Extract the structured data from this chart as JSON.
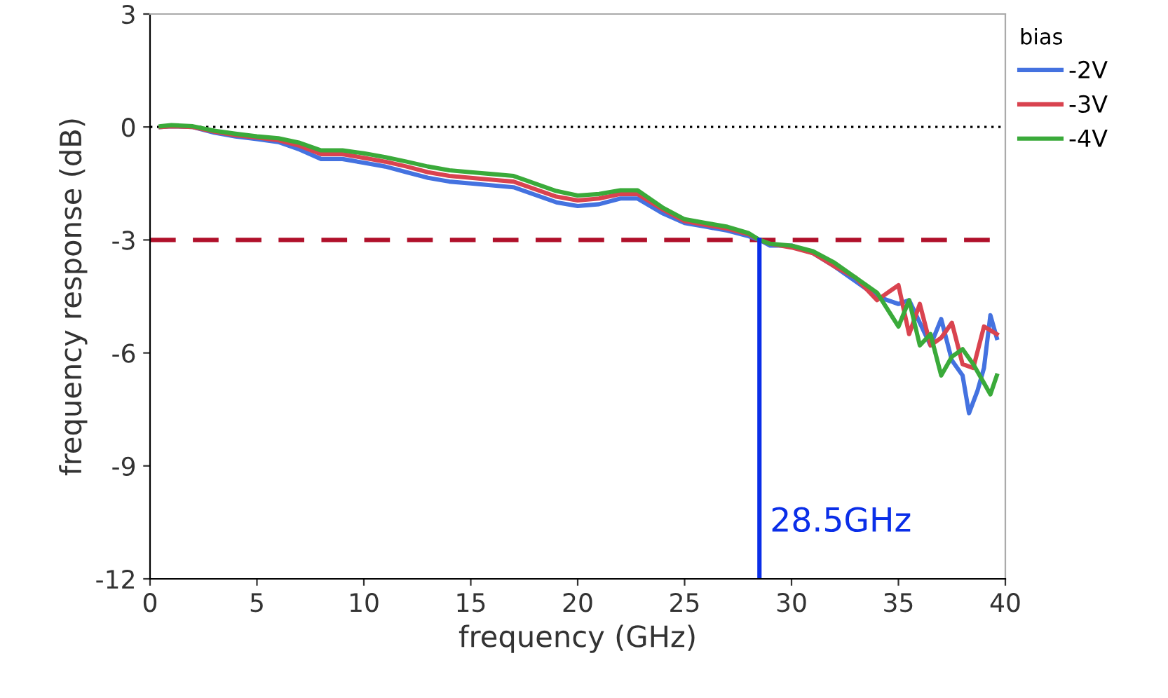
{
  "chart_data": {
    "type": "line",
    "xlabel": "frequency (GHz)",
    "ylabel": "frequency response (dB)",
    "legend_title": "bias",
    "legend": "top right",
    "grid": false,
    "xlim": [
      0,
      40
    ],
    "ylim": [
      -12,
      3
    ],
    "xticks": [
      0,
      5,
      10,
      15,
      20,
      25,
      30,
      35,
      40
    ],
    "yticks": [
      3,
      0,
      -3,
      -6,
      -9,
      -12
    ],
    "series": [
      {
        "name": "-2V",
        "color": "#4472e0",
        "x": [
          0.5,
          1,
          2,
          3,
          4,
          5,
          6,
          7,
          8,
          9,
          10,
          11,
          12,
          13,
          14,
          15,
          16,
          17,
          18,
          19,
          20,
          21,
          22,
          22.8,
          24,
          25,
          26,
          27,
          28,
          28.5,
          29,
          30,
          31,
          32,
          33,
          34,
          35,
          35.5,
          36,
          36.5,
          37,
          37.5,
          38,
          38.3,
          38.7,
          39,
          39.3,
          39.6
        ],
        "values": [
          0,
          0.02,
          0,
          -0.15,
          -0.25,
          -0.32,
          -0.4,
          -0.6,
          -0.85,
          -0.85,
          -0.95,
          -1.05,
          -1.2,
          -1.35,
          -1.45,
          -1.5,
          -1.55,
          -1.6,
          -1.8,
          -2.0,
          -2.1,
          -2.05,
          -1.9,
          -1.9,
          -2.3,
          -2.55,
          -2.65,
          -2.75,
          -2.9,
          -3.0,
          -3.15,
          -3.15,
          -3.35,
          -3.7,
          -4.1,
          -4.5,
          -4.7,
          -4.6,
          -5.2,
          -5.8,
          -5.1,
          -6.2,
          -6.6,
          -7.6,
          -7.0,
          -6.4,
          -5.0,
          -5.6
        ]
      },
      {
        "name": "-3V",
        "color": "#d9434f",
        "x": [
          0.5,
          1,
          2,
          3,
          4,
          5,
          6,
          7,
          8,
          9,
          10,
          11,
          12,
          13,
          14,
          15,
          16,
          17,
          18,
          19,
          20,
          21,
          22,
          22.8,
          24,
          25,
          26,
          27,
          28,
          28.5,
          29,
          30,
          31,
          32,
          33,
          34,
          35,
          35.5,
          36,
          36.5,
          37,
          37.5,
          38,
          38.5,
          39,
          39.6
        ],
        "values": [
          0,
          0.02,
          0,
          -0.12,
          -0.22,
          -0.28,
          -0.35,
          -0.5,
          -0.72,
          -0.72,
          -0.82,
          -0.92,
          -1.05,
          -1.2,
          -1.3,
          -1.35,
          -1.4,
          -1.45,
          -1.65,
          -1.85,
          -1.95,
          -1.9,
          -1.78,
          -1.78,
          -2.2,
          -2.5,
          -2.6,
          -2.7,
          -2.85,
          -3.0,
          -3.1,
          -3.2,
          -3.35,
          -3.7,
          -4.0,
          -4.6,
          -4.2,
          -5.5,
          -4.7,
          -5.8,
          -5.6,
          -5.2,
          -6.3,
          -6.4,
          -5.3,
          -5.5
        ]
      },
      {
        "name": "-4V",
        "color": "#3aaa3a",
        "x": [
          0.5,
          1,
          2,
          3,
          4,
          5,
          6,
          7,
          8,
          9,
          10,
          11,
          12,
          13,
          14,
          15,
          16,
          17,
          18,
          19,
          20,
          21,
          22,
          22.8,
          24,
          25,
          26,
          27,
          28,
          28.5,
          29,
          30,
          31,
          32,
          33,
          34,
          35,
          35.5,
          36,
          36.5,
          37,
          37.5,
          38,
          38.5,
          39,
          39.3,
          39.6
        ],
        "values": [
          0.02,
          0.05,
          0.02,
          -0.1,
          -0.18,
          -0.25,
          -0.3,
          -0.42,
          -0.62,
          -0.62,
          -0.7,
          -0.8,
          -0.92,
          -1.05,
          -1.15,
          -1.2,
          -1.25,
          -1.3,
          -1.5,
          -1.7,
          -1.82,
          -1.78,
          -1.68,
          -1.68,
          -2.15,
          -2.45,
          -2.55,
          -2.65,
          -2.82,
          -3.0,
          -3.1,
          -3.15,
          -3.3,
          -3.6,
          -4.0,
          -4.4,
          -5.3,
          -4.6,
          -5.8,
          -5.5,
          -6.6,
          -6.1,
          -5.9,
          -6.3,
          -6.8,
          -7.1,
          -6.6
        ]
      },
      {
        "color": "#0a2ee8",
        "x": [
          28.5,
          28.5
        ],
        "values": [
          -12,
          -3
        ]
      }
    ],
    "ref_lines": [
      {
        "axis": "y",
        "value": 0,
        "color": "#000000",
        "line_style": "dotted"
      },
      {
        "axis": "y",
        "value": -3,
        "color": "#b0102a",
        "line_style": "dashed"
      }
    ],
    "annotations": [
      {
        "text": "28.5GHz",
        "x": 28.5,
        "y": -10.5
      }
    ]
  }
}
